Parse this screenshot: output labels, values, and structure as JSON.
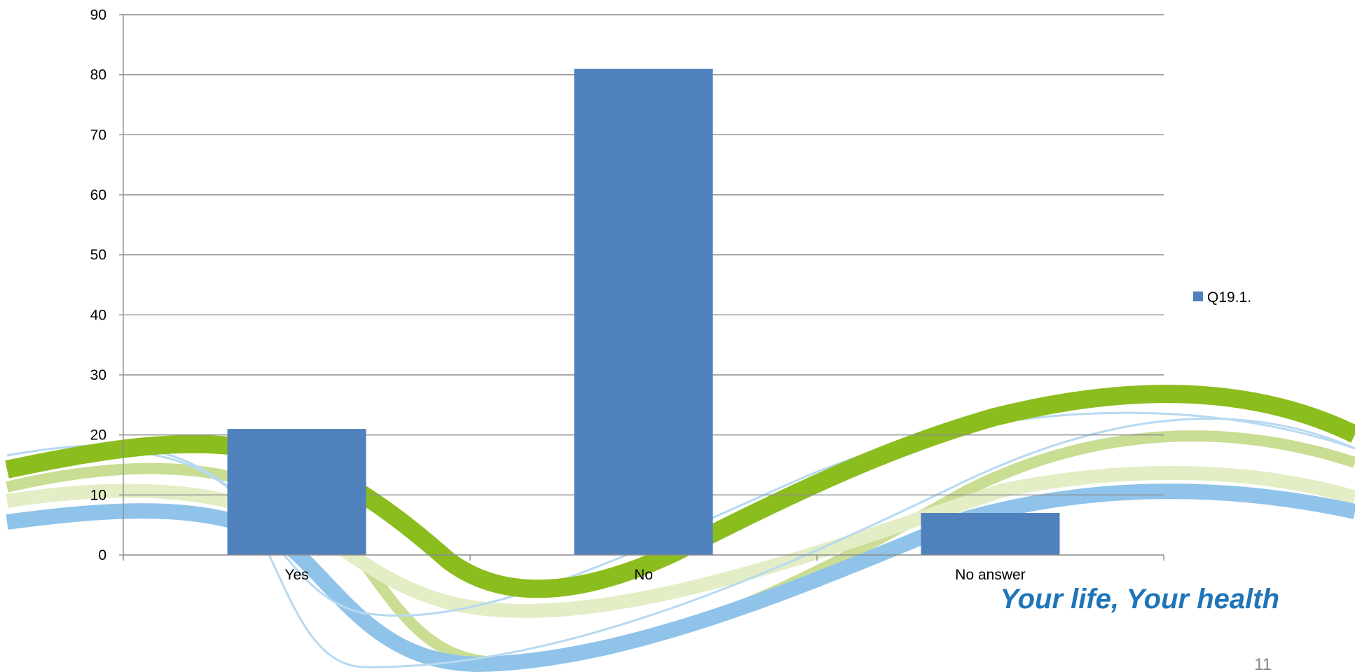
{
  "chart_data": {
    "type": "bar",
    "categories": [
      "Yes",
      "No",
      "No answer"
    ],
    "series": [
      {
        "name": "Q19.1.",
        "values": [
          21,
          81,
          7
        ]
      }
    ],
    "ylim": [
      0,
      90
    ],
    "yticks": [
      0,
      10,
      20,
      30,
      40,
      50,
      60,
      70,
      80,
      90
    ],
    "grid": true,
    "legend_position": "right",
    "bar_color": "#4f81bd"
  },
  "slide": {
    "slogan": "Your life, Your health",
    "page_number": "11",
    "wave_colors": {
      "green": "#8cbd1e",
      "light_green": "#c9dd93",
      "pale_green": "#e3eec6",
      "blue": "#8fc3ea",
      "light_blue": "#b7d9f1"
    }
  }
}
